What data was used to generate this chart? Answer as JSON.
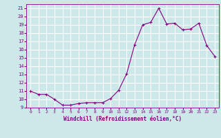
{
  "x": [
    0,
    1,
    2,
    3,
    4,
    5,
    6,
    7,
    8,
    9,
    10,
    11,
    12,
    13,
    14,
    15,
    16,
    17,
    18,
    19,
    20,
    21,
    22,
    23
  ],
  "y": [
    11.0,
    10.6,
    10.6,
    10.0,
    9.3,
    9.3,
    9.5,
    9.6,
    9.6,
    9.6,
    10.1,
    11.1,
    13.1,
    16.6,
    19.0,
    19.3,
    21.0,
    19.1,
    19.2,
    18.4,
    18.5,
    19.2,
    16.5,
    15.2
  ],
  "line_color": "#800080",
  "marker_color": "#800080",
  "bg_color": "#cce8e8",
  "grid_color": "#ffffff",
  "xlabel": "Windchill (Refroidissement éolien,°C)",
  "xlim": [
    -0.5,
    23.5
  ],
  "ylim": [
    9,
    21.5
  ],
  "yticks": [
    9,
    10,
    11,
    12,
    13,
    14,
    15,
    16,
    17,
    18,
    19,
    20,
    21
  ],
  "xticks": [
    0,
    1,
    2,
    3,
    4,
    5,
    6,
    7,
    8,
    9,
    10,
    11,
    12,
    13,
    14,
    15,
    16,
    17,
    18,
    19,
    20,
    21,
    22,
    23
  ]
}
